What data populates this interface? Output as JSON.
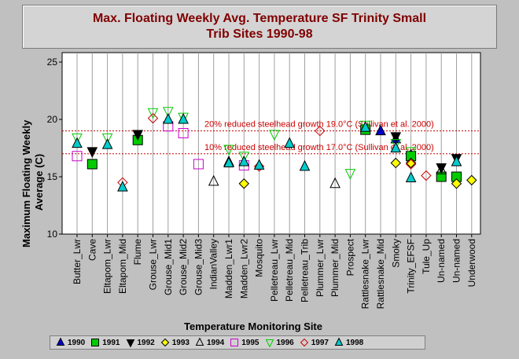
{
  "chart_data": {
    "type": "scatter",
    "title": "Max. Floating Weekly Avg. Temperature SF Trinity Small Trib Sites 1990-98",
    "title_lines": [
      "Max. Floating Weekly Avg. Temperature SF Trinity Small",
      "Trib Sites 1990-98"
    ],
    "xlabel": "Temperature Monitoring Site",
    "ylabel_lines": [
      "Maximum Floating Weekly",
      "Average (C)"
    ],
    "ylim": [
      10,
      25
    ],
    "yticks": [
      10,
      15,
      20,
      25
    ],
    "grid": "vertical",
    "legend_position": "bottom",
    "categories": [
      "Butter_Lwr",
      "Cave",
      "Eltapom_Lwr",
      "Eltapom_Mid",
      "Flume",
      "Grouse_Lwr",
      "Grouse_Mid1",
      "Grouse_Mid2",
      "Grouse_Mid3",
      "IndianValley",
      "Madden_Lwr1",
      "Madden_Lwr2",
      "Mosquito",
      "Pelletreau_Lwr",
      "Pelletreau_Mid",
      "Pelletreau_Trib",
      "Plummer_Lwr",
      "Plummer_Mid",
      "Prospect",
      "Rattlesnake_Lwr",
      "Rattlesnake_Mid",
      "Smoky",
      "Trinity_EFSF",
      "Tule_Up",
      "Un-named",
      "Un-named",
      "Underwood"
    ],
    "reference_lines": [
      {
        "label": "20% reduced steelhead growth 19.0°C (Sullivan et al. 2000)",
        "y": 19.0,
        "color": "#cc0000"
      },
      {
        "label": "10% reduced steelhead growth 17.0°C (Sullivan et al. 2000)",
        "y": 17.0,
        "color": "#cc0000"
      }
    ],
    "series": [
      {
        "name": "1990",
        "marker": "triangle-up",
        "color": "#0000cc",
        "points": [
          [
            "Rattlesnake_Mid",
            19.0
          ],
          [
            "Smoky",
            18.3
          ],
          [
            "Trinity_EFSF",
            16.9
          ]
        ]
      },
      {
        "name": "1991",
        "marker": "square",
        "color": "#00cc00",
        "points": [
          [
            "Cave",
            16.1
          ],
          [
            "Flume",
            18.2
          ],
          [
            "Rattlesnake_Lwr",
            19.1
          ],
          [
            "Trinity_EFSF",
            16.8
          ],
          [
            "Un-named",
            15.0
          ],
          [
            "Un-named#2",
            15.0
          ]
        ]
      },
      {
        "name": "1992",
        "marker": "triangle-down",
        "color": "#000000",
        "points": [
          [
            "Cave",
            17.2
          ],
          [
            "Flume",
            18.7
          ],
          [
            "Smoky",
            18.5
          ],
          [
            "Un-named",
            15.8
          ],
          [
            "Un-named#2",
            16.6
          ]
        ]
      },
      {
        "name": "1993",
        "marker": "diamond",
        "color": "#ffff00",
        "points": [
          [
            "Madden_Lwr2",
            14.4
          ],
          [
            "Smoky",
            16.2
          ],
          [
            "Trinity_EFSF",
            16.2
          ],
          [
            "Un-named#2",
            14.4
          ],
          [
            "Underwood",
            14.7
          ]
        ]
      },
      {
        "name": "1994",
        "marker": "triangle-up-open",
        "color": "#000000",
        "points": [
          [
            "IndianValley",
            14.6
          ],
          [
            "Madden_Lwr1",
            16.3
          ],
          [
            "Plummer_Mid",
            14.4
          ],
          [
            "Un-named",
            15.6
          ]
        ]
      },
      {
        "name": "1995",
        "marker": "square-open",
        "color": "#cc00cc",
        "points": [
          [
            "Butter_Lwr",
            16.8
          ],
          [
            "Grouse_Mid1",
            19.4
          ],
          [
            "Grouse_Mid2",
            18.8
          ],
          [
            "Grouse_Mid3",
            16.1
          ],
          [
            "Madden_Lwr2",
            16.0
          ]
        ]
      },
      {
        "name": "1996",
        "marker": "triangle-down-open",
        "color": "#00cc00",
        "points": [
          [
            "Butter_Lwr",
            18.4
          ],
          [
            "Eltapom_Lwr",
            18.4
          ],
          [
            "Grouse_Lwr",
            20.6
          ],
          [
            "Grouse_Mid1",
            20.7
          ],
          [
            "Grouse_Mid2",
            20.2
          ],
          [
            "Madden_Lwr1",
            17.4
          ],
          [
            "Madden_Lwr2",
            16.8
          ],
          [
            "Pelletreau_Lwr",
            18.7
          ],
          [
            "Prospect",
            15.3
          ],
          [
            "Rattlesnake_Lwr",
            19.5
          ],
          [
            "Smoky",
            17.9
          ],
          [
            "Trinity_EFSF",
            17.2
          ]
        ]
      },
      {
        "name": "1997",
        "marker": "diamond-open",
        "color": "#cc0000",
        "points": [
          [
            "Eltapom_Mid",
            14.5
          ],
          [
            "Grouse_Lwr",
            20.1
          ],
          [
            "Mosquito",
            15.9
          ],
          [
            "Plummer_Lwr",
            19.0
          ],
          [
            "Trinity_EFSF",
            16.1
          ],
          [
            "Tule_Up",
            15.1
          ]
        ]
      },
      {
        "name": "1998",
        "marker": "triangle-up",
        "color": "#00cccc",
        "points": [
          [
            "Butter_Lwr",
            17.9
          ],
          [
            "Eltapom_Lwr",
            17.8
          ],
          [
            "Eltapom_Mid",
            14.1
          ],
          [
            "Grouse_Mid1",
            20.0
          ],
          [
            "Grouse_Mid2",
            20.0
          ],
          [
            "Madden_Lwr1",
            16.2
          ],
          [
            "Madden_Lwr2",
            16.3
          ],
          [
            "Mosquito",
            16.0
          ],
          [
            "Pelletreau_Mid",
            17.9
          ],
          [
            "Pelletreau_Trib",
            15.9
          ],
          [
            "Rattlesnake_Lwr",
            19.3
          ],
          [
            "Smoky",
            17.5
          ],
          [
            "Trinity_EFSF",
            14.9
          ],
          [
            "Un-named#2",
            16.3
          ]
        ]
      }
    ]
  }
}
